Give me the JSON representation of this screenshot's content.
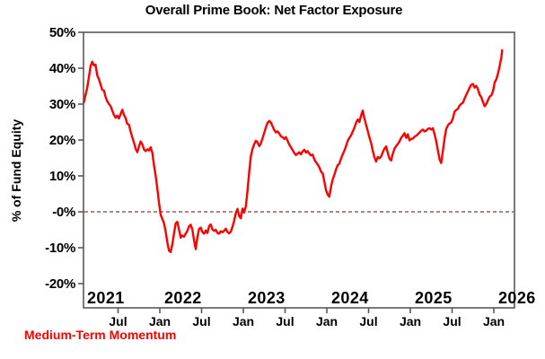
{
  "title": "Overall Prime Book: Net Factor Exposure",
  "legend": {
    "label": "Medium-Term Momentum",
    "color": "#ff0000"
  },
  "colors": {
    "line": "#fe0000",
    "zero_line": "#9b5c5c",
    "frame": "#4f4f4f",
    "text": "#000000",
    "background": "#ffffff"
  },
  "chart_data": {
    "type": "line",
    "title": "Overall Prime Book: Net Factor Exposure",
    "xlabel": "",
    "ylabel": "% of Fund Equity",
    "xlim": [
      2021.086,
      2026.247
    ],
    "ylim": [
      -26.75,
      50
    ],
    "grid": false,
    "zero_reference_line": 0,
    "legend_position": "bottom-left",
    "y_ticks": [
      {
        "value": 50,
        "label": "50%"
      },
      {
        "value": 40,
        "label": "40%"
      },
      {
        "value": 30,
        "label": "30%"
      },
      {
        "value": 20,
        "label": "20%"
      },
      {
        "value": 10,
        "label": "10%"
      },
      {
        "value": 0,
        "label": "-0%"
      },
      {
        "value": -10,
        "label": "-10%"
      },
      {
        "value": -20,
        "label": "-20%"
      }
    ],
    "x_month_ticks": [
      {
        "x": 2021.5,
        "label": "Jul"
      },
      {
        "x": 2022.0,
        "label": "Jan"
      },
      {
        "x": 2022.5,
        "label": "Jul"
      },
      {
        "x": 2023.0,
        "label": "Jan"
      },
      {
        "x": 2023.5,
        "label": "Jul"
      },
      {
        "x": 2024.0,
        "label": "Jan"
      },
      {
        "x": 2024.5,
        "label": "Jul"
      },
      {
        "x": 2025.0,
        "label": "Jan"
      },
      {
        "x": 2025.5,
        "label": "Jul"
      },
      {
        "x": 2026.0,
        "label": "Jan"
      }
    ],
    "year_labels": [
      {
        "x": 2021.0,
        "label": "2021"
      },
      {
        "x": 2022.0,
        "label": "2022"
      },
      {
        "x": 2023.0,
        "label": "2023"
      },
      {
        "x": 2024.0,
        "label": "2024"
      },
      {
        "x": 2025.0,
        "label": "2025"
      },
      {
        "x": 2026.0,
        "label": "2026"
      }
    ],
    "series": [
      {
        "name": "Medium-Term Momentum",
        "color": "#fe0000",
        "points": [
          [
            2021.09,
            30.5
          ],
          [
            2021.11,
            32.5
          ],
          [
            2021.13,
            34.5
          ],
          [
            2021.15,
            37.5
          ],
          [
            2021.17,
            40.5
          ],
          [
            2021.19,
            41.8
          ],
          [
            2021.21,
            40.8
          ],
          [
            2021.23,
            41.0
          ],
          [
            2021.25,
            38.0
          ],
          [
            2021.27,
            37.0
          ],
          [
            2021.29,
            35.5
          ],
          [
            2021.31,
            34.0
          ],
          [
            2021.33,
            33.8
          ],
          [
            2021.35,
            32.0
          ],
          [
            2021.37,
            30.8
          ],
          [
            2021.39,
            30.0
          ],
          [
            2021.41,
            29.5
          ],
          [
            2021.43,
            28.2
          ],
          [
            2021.45,
            27.0
          ],
          [
            2021.47,
            26.2
          ],
          [
            2021.49,
            26.8
          ],
          [
            2021.51,
            26.0
          ],
          [
            2021.53,
            27.2
          ],
          [
            2021.55,
            28.4
          ],
          [
            2021.57,
            27.0
          ],
          [
            2021.59,
            26.1
          ],
          [
            2021.61,
            24.5
          ],
          [
            2021.63,
            24.3
          ],
          [
            2021.65,
            22.3
          ],
          [
            2021.67,
            20.8
          ],
          [
            2021.69,
            19.3
          ],
          [
            2021.71,
            17.6
          ],
          [
            2021.73,
            16.6
          ],
          [
            2021.75,
            18.2
          ],
          [
            2021.77,
            19.6
          ],
          [
            2021.79,
            18.8
          ],
          [
            2021.81,
            17.4
          ],
          [
            2021.83,
            16.9
          ],
          [
            2021.85,
            17.4
          ],
          [
            2021.87,
            17.1
          ],
          [
            2021.89,
            18.0
          ],
          [
            2021.91,
            16.5
          ],
          [
            2021.93,
            13.0
          ],
          [
            2021.95,
            10.0
          ],
          [
            2021.97,
            6.5
          ],
          [
            2021.99,
            2.5
          ],
          [
            2022.01,
            -0.8
          ],
          [
            2022.03,
            -2.0
          ],
          [
            2022.05,
            -3.2
          ],
          [
            2022.07,
            -5.5
          ],
          [
            2022.09,
            -8.5
          ],
          [
            2022.11,
            -10.8
          ],
          [
            2022.13,
            -11.2
          ],
          [
            2022.15,
            -9.0
          ],
          [
            2022.17,
            -6.0
          ],
          [
            2022.19,
            -3.2
          ],
          [
            2022.21,
            -2.8
          ],
          [
            2022.23,
            -5.0
          ],
          [
            2022.25,
            -7.2
          ],
          [
            2022.27,
            -6.6
          ],
          [
            2022.29,
            -6.9
          ],
          [
            2022.31,
            -6.1
          ],
          [
            2022.33,
            -5.3
          ],
          [
            2022.35,
            -4.0
          ],
          [
            2022.37,
            -3.6
          ],
          [
            2022.39,
            -5.0
          ],
          [
            2022.41,
            -8.0
          ],
          [
            2022.43,
            -10.4
          ],
          [
            2022.45,
            -7.0
          ],
          [
            2022.47,
            -4.8
          ],
          [
            2022.49,
            -4.4
          ],
          [
            2022.51,
            -5.6
          ],
          [
            2022.53,
            -6.1
          ],
          [
            2022.55,
            -5.2
          ],
          [
            2022.57,
            -5.9
          ],
          [
            2022.59,
            -4.0
          ],
          [
            2022.61,
            -3.5
          ],
          [
            2022.63,
            -4.9
          ],
          [
            2022.65,
            -5.3
          ],
          [
            2022.67,
            -5.0
          ],
          [
            2022.69,
            -5.9
          ],
          [
            2022.71,
            -6.1
          ],
          [
            2022.73,
            -5.4
          ],
          [
            2022.75,
            -5.7
          ],
          [
            2022.77,
            -5.3
          ],
          [
            2022.79,
            -4.7
          ],
          [
            2022.81,
            -5.6
          ],
          [
            2022.83,
            -6.0
          ],
          [
            2022.85,
            -5.5
          ],
          [
            2022.87,
            -4.2
          ],
          [
            2022.89,
            -2.5
          ],
          [
            2022.91,
            -0.4
          ],
          [
            2022.93,
            0.8
          ],
          [
            2022.95,
            -1.2
          ],
          [
            2022.97,
            -1.8
          ],
          [
            2022.99,
            0.9
          ],
          [
            2023.01,
            -0.2
          ],
          [
            2023.03,
            1.5
          ],
          [
            2023.05,
            6.0
          ],
          [
            2023.07,
            11.0
          ],
          [
            2023.09,
            15.5
          ],
          [
            2023.11,
            17.5
          ],
          [
            2023.13,
            18.8
          ],
          [
            2023.15,
            19.8
          ],
          [
            2023.17,
            19.4
          ],
          [
            2023.19,
            18.3
          ],
          [
            2023.21,
            19.0
          ],
          [
            2023.23,
            20.5
          ],
          [
            2023.25,
            22.0
          ],
          [
            2023.27,
            23.5
          ],
          [
            2023.29,
            24.8
          ],
          [
            2023.31,
            25.3
          ],
          [
            2023.33,
            24.9
          ],
          [
            2023.35,
            23.8
          ],
          [
            2023.37,
            22.8
          ],
          [
            2023.39,
            22.1
          ],
          [
            2023.41,
            22.4
          ],
          [
            2023.43,
            21.8
          ],
          [
            2023.45,
            21.0
          ],
          [
            2023.47,
            20.8
          ],
          [
            2023.49,
            20.3
          ],
          [
            2023.51,
            20.8
          ],
          [
            2023.53,
            19.8
          ],
          [
            2023.55,
            18.7
          ],
          [
            2023.57,
            18.0
          ],
          [
            2023.59,
            17.2
          ],
          [
            2023.61,
            16.4
          ],
          [
            2023.63,
            15.8
          ],
          [
            2023.65,
            16.2
          ],
          [
            2023.67,
            16.6
          ],
          [
            2023.69,
            16.0
          ],
          [
            2023.71,
            16.8
          ],
          [
            2023.73,
            17.3
          ],
          [
            2023.75,
            16.5
          ],
          [
            2023.77,
            16.9
          ],
          [
            2023.79,
            16.2
          ],
          [
            2023.81,
            15.7
          ],
          [
            2023.83,
            15.9
          ],
          [
            2023.85,
            14.6
          ],
          [
            2023.87,
            13.8
          ],
          [
            2023.89,
            13.2
          ],
          [
            2023.91,
            12.4
          ],
          [
            2023.93,
            11.2
          ],
          [
            2023.95,
            10.7
          ],
          [
            2023.97,
            8.5
          ],
          [
            2023.99,
            6.0
          ],
          [
            2024.01,
            4.8
          ],
          [
            2024.03,
            4.2
          ],
          [
            2024.05,
            7.0
          ],
          [
            2024.07,
            9.0
          ],
          [
            2024.09,
            10.3
          ],
          [
            2024.11,
            11.8
          ],
          [
            2024.13,
            13.0
          ],
          [
            2024.15,
            13.4
          ],
          [
            2024.17,
            14.8
          ],
          [
            2024.19,
            16.0
          ],
          [
            2024.21,
            17.0
          ],
          [
            2024.23,
            18.3
          ],
          [
            2024.25,
            19.8
          ],
          [
            2024.27,
            20.6
          ],
          [
            2024.29,
            21.3
          ],
          [
            2024.31,
            22.3
          ],
          [
            2024.33,
            23.4
          ],
          [
            2024.35,
            24.8
          ],
          [
            2024.37,
            25.7
          ],
          [
            2024.39,
            25.0
          ],
          [
            2024.41,
            26.8
          ],
          [
            2024.43,
            28.2
          ],
          [
            2024.45,
            26.0
          ],
          [
            2024.47,
            24.3
          ],
          [
            2024.49,
            22.5
          ],
          [
            2024.51,
            20.8
          ],
          [
            2024.53,
            19.2
          ],
          [
            2024.55,
            17.0
          ],
          [
            2024.57,
            15.2
          ],
          [
            2024.59,
            14.0
          ],
          [
            2024.61,
            15.3
          ],
          [
            2024.63,
            14.9
          ],
          [
            2024.65,
            15.4
          ],
          [
            2024.67,
            16.6
          ],
          [
            2024.69,
            17.6
          ],
          [
            2024.71,
            18.2
          ],
          [
            2024.73,
            16.4
          ],
          [
            2024.75,
            14.8
          ],
          [
            2024.77,
            14.3
          ],
          [
            2024.79,
            16.2
          ],
          [
            2024.81,
            17.6
          ],
          [
            2024.83,
            18.3
          ],
          [
            2024.85,
            18.9
          ],
          [
            2024.87,
            19.6
          ],
          [
            2024.89,
            20.6
          ],
          [
            2024.91,
            21.2
          ],
          [
            2024.93,
            21.9
          ],
          [
            2024.95,
            20.6
          ],
          [
            2024.97,
            21.6
          ],
          [
            2024.99,
            19.9
          ],
          [
            2025.01,
            20.3
          ],
          [
            2025.03,
            20.4
          ],
          [
            2025.05,
            20.9
          ],
          [
            2025.07,
            21.2
          ],
          [
            2025.09,
            21.6
          ],
          [
            2025.11,
            22.1
          ],
          [
            2025.13,
            22.6
          ],
          [
            2025.15,
            22.9
          ],
          [
            2025.17,
            22.4
          ],
          [
            2025.19,
            22.6
          ],
          [
            2025.21,
            23.1
          ],
          [
            2025.23,
            23.3
          ],
          [
            2025.25,
            22.9
          ],
          [
            2025.27,
            23.3
          ],
          [
            2025.29,
            21.6
          ],
          [
            2025.31,
            19.6
          ],
          [
            2025.33,
            17.1
          ],
          [
            2025.35,
            14.6
          ],
          [
            2025.37,
            13.6
          ],
          [
            2025.39,
            17.0
          ],
          [
            2025.41,
            20.6
          ],
          [
            2025.43,
            23.1
          ],
          [
            2025.45,
            24.1
          ],
          [
            2025.47,
            24.6
          ],
          [
            2025.49,
            24.9
          ],
          [
            2025.51,
            26.1
          ],
          [
            2025.53,
            27.9
          ],
          [
            2025.55,
            28.4
          ],
          [
            2025.57,
            28.7
          ],
          [
            2025.59,
            29.6
          ],
          [
            2025.61,
            30.1
          ],
          [
            2025.63,
            30.4
          ],
          [
            2025.65,
            31.6
          ],
          [
            2025.67,
            32.6
          ],
          [
            2025.69,
            33.6
          ],
          [
            2025.71,
            34.6
          ],
          [
            2025.73,
            35.4
          ],
          [
            2025.75,
            35.6
          ],
          [
            2025.77,
            34.6
          ],
          [
            2025.79,
            35.1
          ],
          [
            2025.81,
            34.1
          ],
          [
            2025.83,
            32.6
          ],
          [
            2025.85,
            31.9
          ],
          [
            2025.87,
            30.6
          ],
          [
            2025.89,
            29.4
          ],
          [
            2025.91,
            30.1
          ],
          [
            2025.93,
            31.1
          ],
          [
            2025.95,
            32.1
          ],
          [
            2025.97,
            32.4
          ],
          [
            2025.99,
            33.6
          ],
          [
            2026.01,
            36.1
          ],
          [
            2026.03,
            36.9
          ],
          [
            2026.05,
            38.6
          ],
          [
            2026.07,
            40.6
          ],
          [
            2026.09,
            43.0
          ],
          [
            2026.1,
            45.0
          ]
        ]
      }
    ]
  }
}
